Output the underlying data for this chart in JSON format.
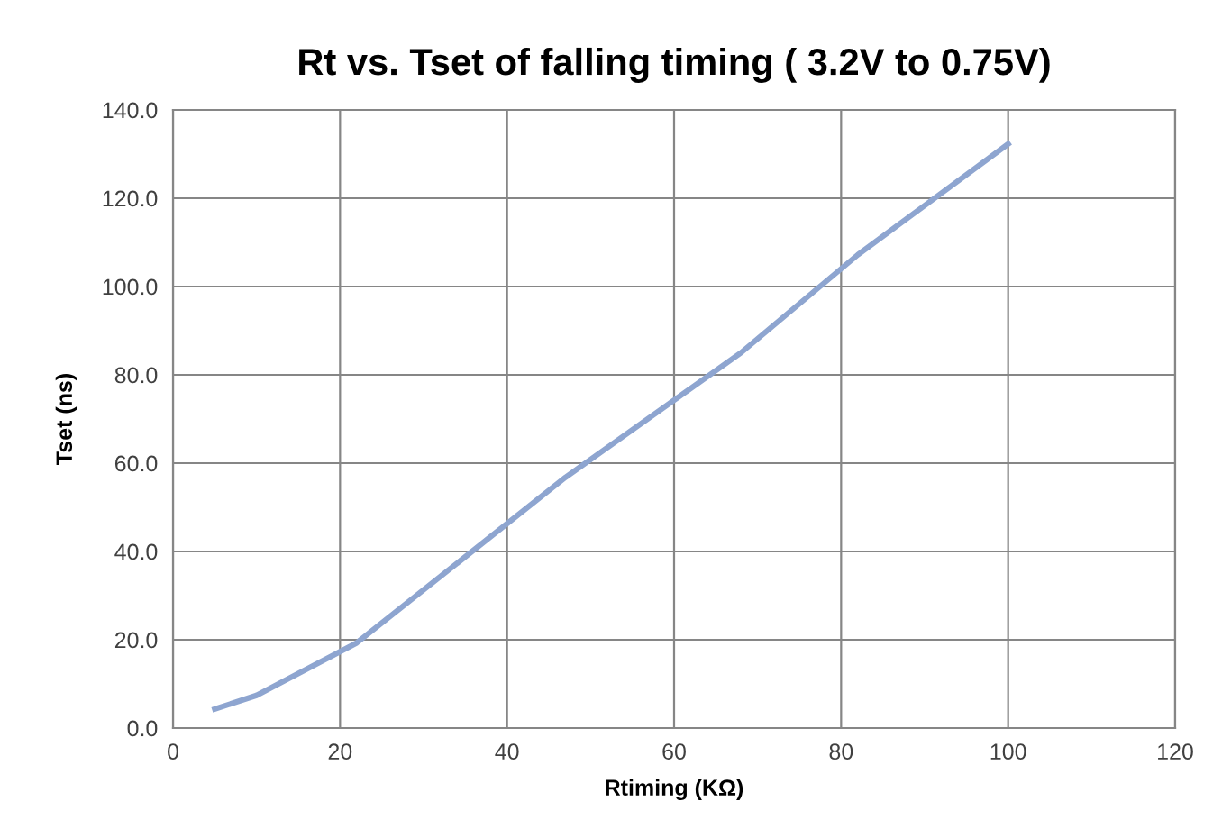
{
  "chart_data": {
    "type": "line",
    "title": "Rt vs. Tset of falling timing ( 3.2V to 0.75V)",
    "xlabel": "Rtiming (KΩ)",
    "ylabel": "Tset (ns)",
    "x": [
      5,
      10,
      22,
      47,
      68,
      82,
      100
    ],
    "series": [
      {
        "color": "#8ea5d0",
        "values": [
          4.3,
          7.4,
          19.3,
          56.8,
          85.0,
          107.2,
          132.3
        ]
      }
    ],
    "xlim": [
      0,
      120
    ],
    "xticks": [
      0,
      20,
      40,
      60,
      80,
      100,
      120
    ],
    "ylim": [
      0,
      140
    ],
    "yticks": [
      {
        "value": 0,
        "label": "0.0"
      },
      {
        "value": 20,
        "label": "20.0"
      },
      {
        "value": 40,
        "label": "40.0"
      },
      {
        "value": 60,
        "label": "60.0"
      },
      {
        "value": 80,
        "label": "80.0"
      },
      {
        "value": 100,
        "label": "100.0"
      },
      {
        "value": 120,
        "label": "120.0"
      },
      {
        "value": 140,
        "label": "140.0"
      }
    ],
    "grid": true,
    "legend": false,
    "marker": "none",
    "line_style": "solid"
  }
}
